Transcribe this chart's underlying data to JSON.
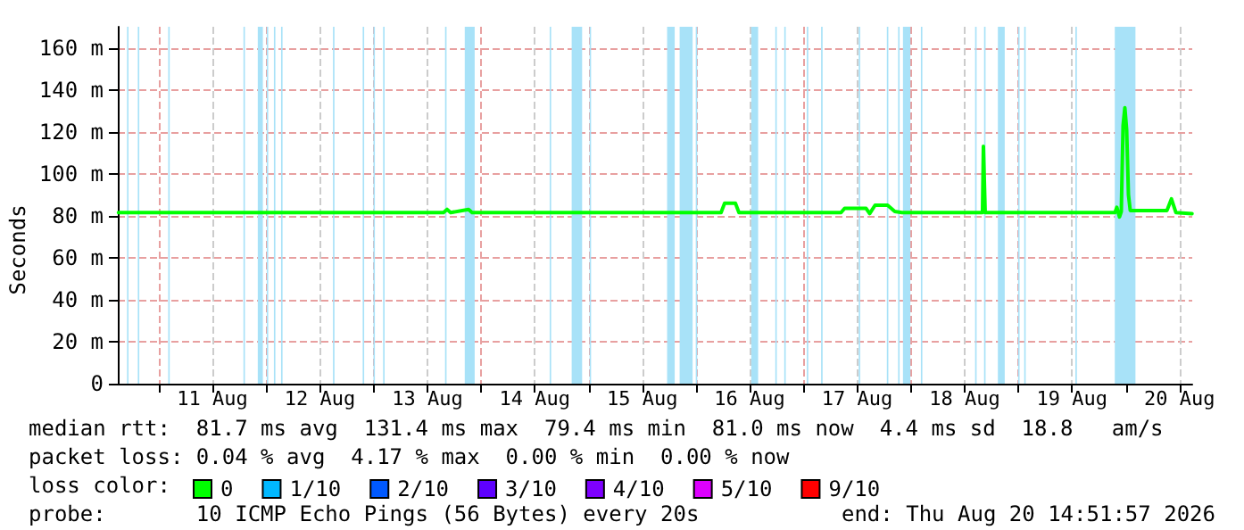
{
  "chart_data": {
    "type": "line",
    "ylabel": "Seconds",
    "annotations": [
      "median rtt:  81.7 ms avg  131.4 ms max  79.4 ms min  81.0 ms now  4.4 ms sd  18.8   am/s",
      "packet loss: 0.04 % avg  4.17 % max  0.00 % min  0.00 % now",
      "loss color:",
      "probe:       10 ICMP Echo Pings (56 Bytes) every 20s",
      "end: Thu Aug 20 14:51:57 2026"
    ],
    "x": [
      "2026-08-10T15:00",
      "2026-08-13T15:36",
      "2026-08-13T16:24",
      "2026-08-13T17:12",
      "2026-08-13T21:12",
      "2026-08-13T22:00",
      "2026-08-16T05:36",
      "2026-08-16T06:24",
      "2026-08-16T08:48",
      "2026-08-16T09:36",
      "2026-08-17T08:24",
      "2026-08-17T09:12",
      "2026-08-17T14:00",
      "2026-08-17T14:48",
      "2026-08-17T16:00",
      "2026-08-17T18:48",
      "2026-08-17T20:24",
      "2026-08-17T22:00",
      "2026-08-18T16:00",
      "2026-08-18T16:12",
      "2026-08-18T16:36",
      "2026-08-19T21:36",
      "2026-08-19T22:00",
      "2026-08-19T22:36",
      "2026-08-19T23:00",
      "2026-08-19T23:24",
      "2026-08-19T23:48",
      "2026-08-20T00:12",
      "2026-08-20T00:36",
      "2026-08-20T01:00",
      "2026-08-20T09:12",
      "2026-08-20T10:12",
      "2026-08-20T11:12",
      "2026-08-20T14:48"
    ],
    "series": [
      {
        "name": "0",
        "color": "#00ff00",
        "values": [
          81.5,
          81.5,
          83,
          81.5,
          83,
          81.5,
          81.5,
          86,
          86,
          81.5,
          81.5,
          83.5,
          83.5,
          81,
          85,
          85,
          82,
          81.5,
          81.5,
          113,
          81.5,
          81.5,
          84,
          79.4,
          82,
          123,
          131.4,
          121,
          90,
          82.5,
          82.5,
          88,
          81.5,
          81
        ]
      },
      {
        "name": "1/10",
        "color": "#00b8ff",
        "values": [
          null,
          null,
          null,
          null,
          null,
          null,
          null,
          null,
          null,
          null,
          null,
          null,
          null,
          null,
          null,
          null,
          null,
          null,
          null,
          null,
          null,
          null,
          null,
          null,
          null,
          null,
          null,
          null,
          null,
          null,
          null,
          null,
          null,
          null
        ]
      },
      {
        "name": "2/10",
        "color": "#0059ff",
        "values": [
          null,
          null,
          null,
          null,
          null,
          null,
          null,
          null,
          null,
          null,
          null,
          null,
          null,
          null,
          null,
          null,
          null,
          null,
          null,
          null,
          null,
          null,
          null,
          null,
          null,
          null,
          null,
          null,
          null,
          null,
          null,
          null,
          null,
          null
        ]
      },
      {
        "name": "3/10",
        "color": "#5e00ff",
        "values": [
          null,
          null,
          null,
          null,
          null,
          null,
          null,
          null,
          null,
          null,
          null,
          null,
          null,
          null,
          null,
          null,
          null,
          null,
          null,
          null,
          null,
          null,
          null,
          null,
          null,
          null,
          null,
          null,
          null,
          null,
          null,
          null,
          null,
          null
        ]
      },
      {
        "name": "4/10",
        "color": "#7e00ff",
        "values": [
          null,
          null,
          null,
          null,
          null,
          null,
          null,
          null,
          null,
          null,
          null,
          null,
          null,
          null,
          null,
          null,
          null,
          null,
          null,
          null,
          null,
          null,
          null,
          null,
          null,
          null,
          null,
          null,
          null,
          null,
          null,
          null,
          null,
          null
        ]
      },
      {
        "name": "5/10",
        "color": "#dd00ff",
        "values": [
          null,
          null,
          null,
          null,
          null,
          null,
          null,
          null,
          null,
          null,
          null,
          null,
          null,
          null,
          null,
          null,
          null,
          null,
          null,
          null,
          null,
          null,
          null,
          null,
          null,
          null,
          null,
          null,
          null,
          null,
          null,
          null,
          null,
          null
        ]
      },
      {
        "name": "9/10",
        "color": "#ff0000",
        "values": [
          null,
          null,
          null,
          null,
          null,
          null,
          null,
          null,
          null,
          null,
          null,
          null,
          null,
          null,
          null,
          null,
          null,
          null,
          null,
          null,
          null,
          null,
          null,
          null,
          null,
          null,
          null,
          null,
          null,
          null,
          null,
          null,
          null,
          null
        ]
      }
    ],
    "xlim": [
      "2026-08-10T14:51",
      "2026-08-20T14:51"
    ],
    "xticks": [
      {
        "value": "2026-08-11T00:00",
        "label": null
      },
      {
        "value": "2026-08-11T12:00",
        "label": "11 Aug"
      },
      {
        "value": "2026-08-12T00:00",
        "label": null
      },
      {
        "value": "2026-08-12T12:00",
        "label": "12 Aug"
      },
      {
        "value": "2026-08-13T00:00",
        "label": null
      },
      {
        "value": "2026-08-13T12:00",
        "label": "13 Aug"
      },
      {
        "value": "2026-08-14T00:00",
        "label": null
      },
      {
        "value": "2026-08-14T12:00",
        "label": "14 Aug"
      },
      {
        "value": "2026-08-15T00:00",
        "label": null
      },
      {
        "value": "2026-08-15T12:00",
        "label": "15 Aug"
      },
      {
        "value": "2026-08-16T00:00",
        "label": null
      },
      {
        "value": "2026-08-16T12:00",
        "label": "16 Aug"
      },
      {
        "value": "2026-08-17T00:00",
        "label": null
      },
      {
        "value": "2026-08-17T12:00",
        "label": "17 Aug"
      },
      {
        "value": "2026-08-18T00:00",
        "label": null
      },
      {
        "value": "2026-08-18T12:00",
        "label": "18 Aug"
      },
      {
        "value": "2026-08-19T00:00",
        "label": null
      },
      {
        "value": "2026-08-19T12:00",
        "label": "19 Aug"
      },
      {
        "value": "2026-08-20T00:00",
        "label": null
      },
      {
        "value": "2026-08-20T12:00",
        "label": "20 Aug"
      }
    ],
    "ylim": [
      0,
      170
    ],
    "yticks": [
      0,
      {
        "value": 20,
        "label": "20 m"
      },
      {
        "value": 40,
        "label": "40 m"
      },
      {
        "value": 60,
        "label": "60 m"
      },
      {
        "value": 80,
        "label": "80 m"
      },
      {
        "value": 100,
        "label": "100 m"
      },
      {
        "value": 120,
        "label": "120 m"
      },
      {
        "value": 140,
        "label": "140 m"
      },
      {
        "value": 160,
        "label": "160 m"
      }
    ],
    "bands": [
      {
        "axis": "x",
        "from": "2026-08-10T16:55",
        "to": "2026-08-10T17:15",
        "color": "#a8e2f8"
      },
      {
        "axis": "x",
        "from": "2026-08-10T19:19",
        "to": "2026-08-10T19:39",
        "color": "#a8e2f8"
      },
      {
        "axis": "x",
        "from": "2026-08-11T02:07",
        "to": "2026-08-11T02:27",
        "color": "#a8e2f8"
      },
      {
        "axis": "x",
        "from": "2026-08-11T18:55",
        "to": "2026-08-11T19:15",
        "color": "#a8e2f8"
      },
      {
        "axis": "x",
        "from": "2026-08-11T22:07",
        "to": "2026-08-11T23:15",
        "color": "#a8e2f8"
      },
      {
        "axis": "x",
        "from": "2026-08-12T00:07",
        "to": "2026-08-12T00:27",
        "color": "#a8e2f8"
      },
      {
        "axis": "x",
        "from": "2026-08-12T01:43",
        "to": "2026-08-12T02:03",
        "color": "#a8e2f8"
      },
      {
        "axis": "x",
        "from": "2026-08-12T03:19",
        "to": "2026-08-12T03:39",
        "color": "#a8e2f8"
      },
      {
        "axis": "x",
        "from": "2026-08-12T14:55",
        "to": "2026-08-12T15:15",
        "color": "#a8e2f8"
      },
      {
        "axis": "x",
        "from": "2026-08-12T21:33",
        "to": "2026-08-12T21:53",
        "color": "#a8e2f8"
      },
      {
        "axis": "x",
        "from": "2026-08-12T23:57",
        "to": "2026-08-13T00:17",
        "color": "#a8e2f8"
      },
      {
        "axis": "x",
        "from": "2026-08-13T02:07",
        "to": "2026-08-13T02:27",
        "color": "#a8e2f8"
      },
      {
        "axis": "x",
        "from": "2026-08-13T15:57",
        "to": "2026-08-13T16:17",
        "color": "#a8e2f8"
      },
      {
        "axis": "x",
        "from": "2026-08-13T20:21",
        "to": "2026-08-13T22:34",
        "color": "#a8e2f8"
      },
      {
        "axis": "x",
        "from": "2026-08-14T15:19",
        "to": "2026-08-14T15:39",
        "color": "#a8e2f8"
      },
      {
        "axis": "x",
        "from": "2026-08-14T20:14",
        "to": "2026-08-14T22:34",
        "color": "#a8e2f8"
      },
      {
        "axis": "x",
        "from": "2026-08-15T00:14",
        "to": "2026-08-15T00:34",
        "color": "#a8e2f8"
      },
      {
        "axis": "x",
        "from": "2026-08-15T17:33",
        "to": "2026-08-15T19:15",
        "color": "#a8e2f8"
      },
      {
        "axis": "x",
        "from": "2026-08-15T20:21",
        "to": "2026-08-15T23:15",
        "color": "#a8e2f8"
      },
      {
        "axis": "x",
        "from": "2026-08-15T23:57",
        "to": "2026-08-16T00:17",
        "color": "#a8e2f8"
      },
      {
        "axis": "x",
        "from": "2026-08-16T12:21",
        "to": "2026-08-16T13:53",
        "color": "#a8e2f8"
      },
      {
        "axis": "x",
        "from": "2026-08-16T17:43",
        "to": "2026-08-16T18:03",
        "color": "#a8e2f8"
      },
      {
        "axis": "x",
        "from": "2026-08-16T19:43",
        "to": "2026-08-16T20:03",
        "color": "#a8e2f8"
      },
      {
        "axis": "x",
        "from": "2026-08-17T00:45",
        "to": "2026-08-17T01:05",
        "color": "#a8e2f8"
      },
      {
        "axis": "x",
        "from": "2026-08-17T03:57",
        "to": "2026-08-17T04:17",
        "color": "#a8e2f8"
      },
      {
        "axis": "x",
        "from": "2026-08-17T12:21",
        "to": "2026-08-17T12:41",
        "color": "#a8e2f8"
      },
      {
        "axis": "x",
        "from": "2026-08-17T18:38",
        "to": "2026-08-17T18:58",
        "color": "#a8e2f8"
      },
      {
        "axis": "x",
        "from": "2026-08-17T21:09",
        "to": "2026-08-17T21:29",
        "color": "#a8e2f8"
      },
      {
        "axis": "x",
        "from": "2026-08-17T22:14",
        "to": "2026-08-17T23:53",
        "color": "#a8e2f8"
      },
      {
        "axis": "x",
        "from": "2026-08-18T02:14",
        "to": "2026-08-18T02:34",
        "color": "#a8e2f8"
      },
      {
        "axis": "x",
        "from": "2026-08-18T14:21",
        "to": "2026-08-18T14:41",
        "color": "#a8e2f8"
      },
      {
        "axis": "x",
        "from": "2026-08-18T16:21",
        "to": "2026-08-18T16:41",
        "color": "#a8e2f8"
      },
      {
        "axis": "x",
        "from": "2026-08-18T19:26",
        "to": "2026-08-18T20:58",
        "color": "#a8e2f8"
      },
      {
        "axis": "x",
        "from": "2026-08-18T23:57",
        "to": "2026-08-19T00:17",
        "color": "#a8e2f8"
      },
      {
        "axis": "x",
        "from": "2026-08-19T01:19",
        "to": "2026-08-19T01:39",
        "color": "#a8e2f8"
      },
      {
        "axis": "x",
        "from": "2026-08-19T12:45",
        "to": "2026-08-19T13:05",
        "color": "#a8e2f8"
      },
      {
        "axis": "x",
        "from": "2026-08-19T21:33",
        "to": "2026-08-20T02:10",
        "color": "#a8e2f8"
      }
    ],
    "grid": true,
    "legend": "bottom left",
    "marker": "none",
    "line_style": "solid"
  }
}
